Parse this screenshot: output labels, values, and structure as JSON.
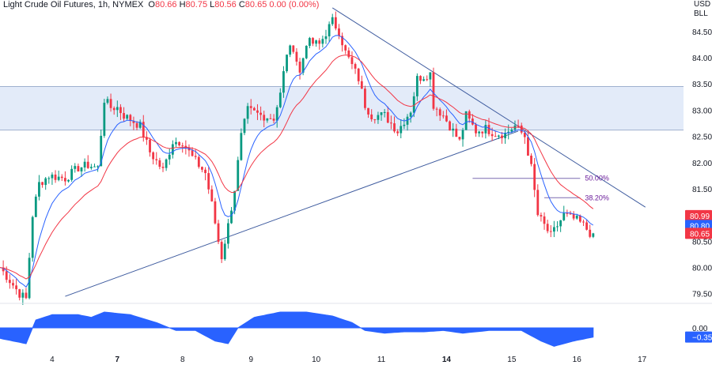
{
  "header": {
    "symbol": "Light Crude Oil Futures, 1h, NYMEX",
    "open_label": "O",
    "open": "80.66",
    "high_label": "H",
    "high": "80.75",
    "low_label": "L",
    "low": "80.56",
    "close_label": "C",
    "close": "80.65",
    "change": "0.00 (0.00%)"
  },
  "unit": {
    "currency": "USD",
    "unit": "BLL"
  },
  "colors": {
    "up": "#089981",
    "down": "#f23645",
    "ema_fast": "#2962ff",
    "ema_slow": "#f23645",
    "trendline": "#3d5a9e",
    "oscillator": "#2962ff",
    "zone_fill": "#e3ebf9",
    "fib": "#6a1b9a"
  },
  "chart_data": {
    "type": "candlestick",
    "title": "Light Crude Oil Futures, 1h, NYMEX",
    "ylim": [
      79.3,
      85.1
    ],
    "y_ticks": [
      "84.50",
      "84.00",
      "83.50",
      "83.00",
      "82.50",
      "82.00",
      "81.50",
      "81.00",
      "80.50",
      "80.00",
      "79.50"
    ],
    "x_ticks": [
      "4",
      "7",
      "8",
      "9",
      "10",
      "11",
      "14",
      "15",
      "16",
      "17"
    ],
    "x_tick_bold": [
      "7",
      "14"
    ],
    "x_tick_index": [
      16,
      36,
      56,
      77,
      97,
      117,
      137,
      157,
      177,
      197
    ],
    "price_key_points": [
      [
        0,
        80.0
      ],
      [
        6,
        79.5
      ],
      [
        8,
        79.4
      ],
      [
        10,
        81.0
      ],
      [
        12,
        81.6
      ],
      [
        15,
        81.75
      ],
      [
        20,
        81.7
      ],
      [
        24,
        81.9
      ],
      [
        27,
        81.95
      ],
      [
        30,
        81.9
      ],
      [
        32,
        83.2
      ],
      [
        34,
        83.05
      ],
      [
        36,
        83.05
      ],
      [
        38,
        82.9
      ],
      [
        43,
        82.7
      ],
      [
        46,
        82.2
      ],
      [
        50,
        81.85
      ],
      [
        53,
        82.4
      ],
      [
        56,
        82.4
      ],
      [
        59,
        82.1
      ],
      [
        63,
        81.8
      ],
      [
        65,
        81.2
      ],
      [
        67,
        80.5
      ],
      [
        68,
        80.2
      ],
      [
        70,
        80.8
      ],
      [
        72,
        81.5
      ],
      [
        74,
        82.5
      ],
      [
        76,
        83.0
      ],
      [
        80,
        82.9
      ],
      [
        84,
        82.85
      ],
      [
        86,
        83.3
      ],
      [
        88,
        84.1
      ],
      [
        90,
        84.2
      ],
      [
        92,
        83.7
      ],
      [
        94,
        84.3
      ],
      [
        98,
        84.25
      ],
      [
        102,
        84.7
      ],
      [
        104,
        84.5
      ],
      [
        106,
        84.1
      ],
      [
        110,
        83.6
      ],
      [
        112,
        83.1
      ],
      [
        114,
        82.9
      ],
      [
        118,
        82.9
      ],
      [
        122,
        82.6
      ],
      [
        126,
        83.0
      ],
      [
        128,
        83.6
      ],
      [
        132,
        83.7
      ],
      [
        133,
        83.1
      ],
      [
        136,
        82.9
      ],
      [
        139,
        82.6
      ],
      [
        141,
        82.4
      ],
      [
        143,
        82.9
      ],
      [
        146,
        82.6
      ],
      [
        149,
        82.65
      ],
      [
        152,
        82.55
      ],
      [
        155,
        82.55
      ],
      [
        158,
        82.7
      ],
      [
        161,
        82.5
      ],
      [
        163,
        81.9
      ],
      [
        165,
        81.0
      ],
      [
        167,
        80.8
      ],
      [
        169,
        80.6
      ],
      [
        171,
        80.8
      ],
      [
        173,
        81.0
      ],
      [
        175,
        80.95
      ],
      [
        177,
        80.9
      ],
      [
        179,
        80.8
      ],
      [
        181,
        80.66
      ],
      [
        182,
        80.65
      ]
    ],
    "series": [
      {
        "name": "",
        "style": "candles",
        "values_from": "price_key_points"
      },
      {
        "name": "",
        "style": "line",
        "color": "#2962ff",
        "ema_period": 9
      },
      {
        "name": "",
        "style": "line",
        "color": "#f23645",
        "ema_period": 21
      }
    ],
    "resistance_zone": [
      82.62,
      83.45
    ],
    "trendlines": [
      {
        "from": [
          102,
          84.95
        ],
        "to": [
          198,
          81.15
        ]
      },
      {
        "from": [
          20,
          79.45
        ],
        "to": [
          159,
          82.6
        ]
      }
    ],
    "fib_levels": [
      {
        "label": "50.00%",
        "value": 81.7,
        "from_index": 145,
        "to_index": 178
      },
      {
        "label": "38.20%",
        "value": 81.33,
        "from_index": 167,
        "to_index": 178
      }
    ],
    "price_labels": [
      {
        "value": 80.99,
        "text": "80.99",
        "color": "#f23645"
      },
      {
        "value": 80.8,
        "text": "80.80",
        "color": "#2962ff"
      },
      {
        "value": 80.65,
        "text": "80.65",
        "color": "#f23645"
      }
    ],
    "oscillator": {
      "zero_label": "0.00",
      "last_label": "−0.35",
      "last_color": "#2962ff",
      "key_points": [
        [
          0,
          -0.4
        ],
        [
          8,
          -0.6
        ],
        [
          11,
          0.3
        ],
        [
          16,
          0.5
        ],
        [
          24,
          0.5
        ],
        [
          28,
          0.4
        ],
        [
          32,
          0.6
        ],
        [
          40,
          0.5
        ],
        [
          48,
          0.2
        ],
        [
          54,
          -0.1
        ],
        [
          60,
          -0.1
        ],
        [
          66,
          -0.5
        ],
        [
          70,
          -0.6
        ],
        [
          73,
          0.0
        ],
        [
          78,
          0.4
        ],
        [
          86,
          0.6
        ],
        [
          94,
          0.6
        ],
        [
          102,
          0.45
        ],
        [
          108,
          0.2
        ],
        [
          112,
          -0.1
        ],
        [
          118,
          -0.2
        ],
        [
          124,
          -0.15
        ],
        [
          130,
          -0.15
        ],
        [
          136,
          -0.1
        ],
        [
          142,
          -0.2
        ],
        [
          150,
          -0.1
        ],
        [
          160,
          -0.1
        ],
        [
          166,
          -0.5
        ],
        [
          170,
          -0.7
        ],
        [
          176,
          -0.5
        ],
        [
          182,
          -0.35
        ]
      ],
      "ylim": [
        -0.9,
        0.9
      ]
    }
  }
}
